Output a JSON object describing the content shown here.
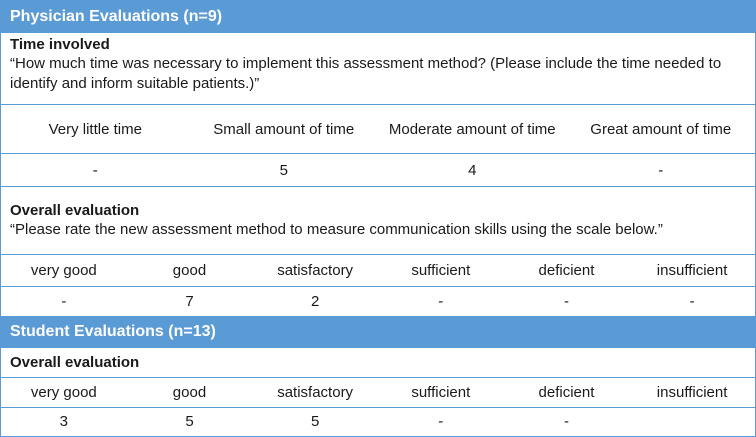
{
  "physician": {
    "title": "Physician Evaluations (n=9)",
    "time": {
      "heading": "Time involved",
      "question": "“How much time was necessary to implement this assessment method? (Please include the time needed to identify and inform suitable patients.)”",
      "headers": [
        "Very little time",
        "Small amount of time",
        "Moderate amount of time",
        "Great amount of time"
      ],
      "values": [
        "-",
        "5",
        "4",
        "-"
      ]
    },
    "overall": {
      "heading": "Overall evaluation",
      "question": "“Please rate the new assessment method to measure communication skills using the scale below.”",
      "headers": [
        "very good",
        "good",
        "satisfactory",
        "sufficient",
        "deficient",
        "insufficient"
      ],
      "values": [
        "-",
        "7",
        "2",
        "-",
        "-",
        "-"
      ]
    }
  },
  "student": {
    "title": "Student Evaluations (n=13)",
    "overall": {
      "heading": "Overall evaluation",
      "headers": [
        "very good",
        "good",
        "satisfactory",
        "sufficient",
        "deficient",
        "insufficient"
      ],
      "values": [
        "3",
        "5",
        "5",
        "-",
        "-",
        ""
      ]
    }
  }
}
